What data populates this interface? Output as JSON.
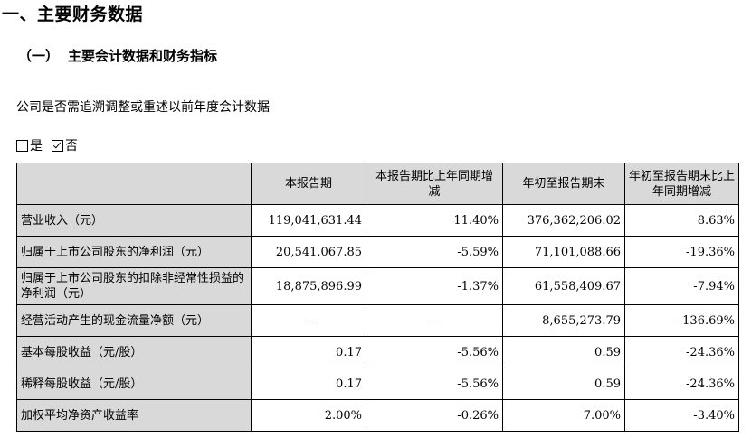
{
  "section_title": "一、主要财务数据",
  "subsection": {
    "number": "（一）",
    "title": "主要会计数据和财务指标"
  },
  "question": "公司是否需追溯调整或重述以前年度会计数据",
  "choices": [
    {
      "label": "是",
      "checked": false
    },
    {
      "label": "否",
      "checked": true
    }
  ],
  "table": {
    "headers": [
      "",
      "本报告期",
      "本报告期比上年同期增减",
      "年初至报告期末",
      "年初至报告期末比上年同期增减"
    ],
    "rows": [
      {
        "label": "营业收入（元）",
        "cells": [
          "119,041,631.44",
          "11.40%",
          "376,362,206.02",
          "8.63%"
        ]
      },
      {
        "label": "归属于上市公司股东的净利润（元）",
        "cells": [
          "20,541,067.85",
          "-5.59%",
          "71,101,088.66",
          "-19.36%"
        ]
      },
      {
        "label": "归属于上市公司股东的扣除非经常性损益的净利润（元）",
        "cells": [
          "18,875,896.99",
          "-1.37%",
          "61,558,409.67",
          "-7.94%"
        ]
      },
      {
        "label": "经营活动产生的现金流量净额（元）",
        "cells": [
          "--",
          "--",
          "-8,655,273.79",
          "-136.69%"
        ]
      },
      {
        "label": "基本每股收益（元/股）",
        "cells": [
          "0.17",
          "-5.56%",
          "0.59",
          "-24.36%"
        ]
      },
      {
        "label": "稀释每股收益（元/股）",
        "cells": [
          "0.17",
          "-5.56%",
          "0.59",
          "-24.36%"
        ]
      },
      {
        "label": "加权平均净资产收益率",
        "cells": [
          "2.00%",
          "-0.26%",
          "7.00%",
          "-3.40%"
        ]
      }
    ]
  }
}
